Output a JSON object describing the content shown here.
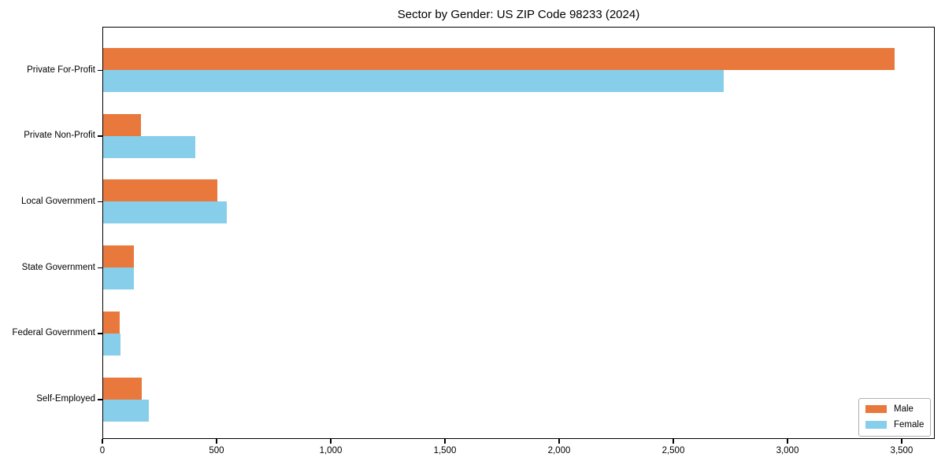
{
  "chart_data": {
    "type": "bar",
    "orientation": "horizontal",
    "title": "Sector by Gender: US ZIP Code 98233 (2024)",
    "categories": [
      "Private For-Profit",
      "Private Non-Profit",
      "Local Government",
      "State Government",
      "Federal Government",
      "Self-Employed"
    ],
    "series": [
      {
        "name": "Male",
        "color": "#e8783c",
        "values": [
          3466,
          166,
          500,
          134,
          72,
          168
        ]
      },
      {
        "name": "Female",
        "color": "#87ceeb",
        "values": [
          2717,
          403,
          540,
          135,
          75,
          200
        ]
      }
    ],
    "xlabel": "",
    "ylabel": "",
    "xlim": [
      0,
      3645
    ],
    "xticks": [
      0,
      500,
      1000,
      1500,
      2000,
      2500,
      3000,
      3500
    ],
    "xtick_labels": [
      "0",
      "500",
      "1,000",
      "1,500",
      "2,000",
      "2,500",
      "3,000",
      "3,500"
    ],
    "legend": {
      "position": "lower-right",
      "entries": [
        "Male",
        "Female"
      ]
    },
    "grid": false,
    "background_color": "#ffffff",
    "spine_color": "#000000"
  }
}
